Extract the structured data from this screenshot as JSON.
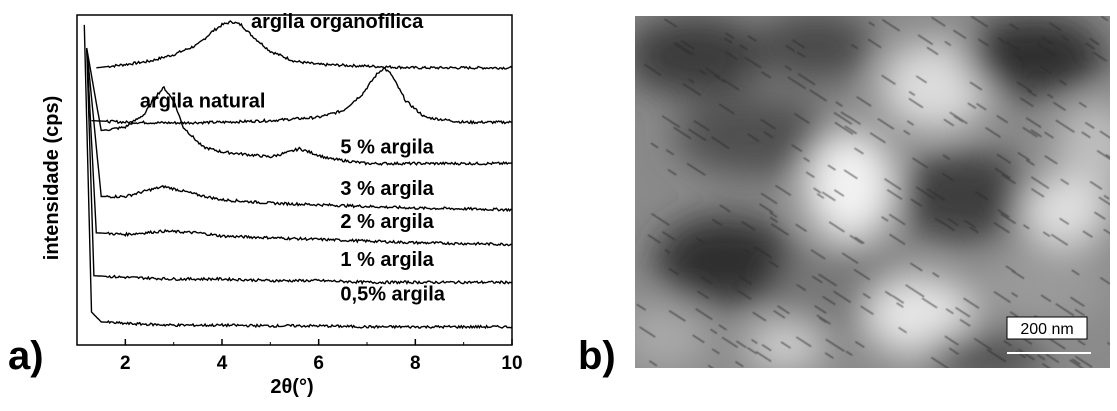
{
  "panel_a_label": "a)",
  "panel_b_label": "b)",
  "scale_bar_label": "200 nm",
  "chart_data": {
    "type": "line",
    "xlabel": "2θ(°)",
    "ylabel": "intensidade (cps)",
    "xlim": [
      1,
      10
    ],
    "xticks": [
      2,
      4,
      6,
      8,
      10
    ],
    "yticks_shown": false,
    "series": [
      {
        "name": "argila organofílica",
        "label_pos": [
          4.6,
          0.96
        ],
        "x": [
          1.4,
          2.0,
          2.5,
          3.0,
          3.5,
          3.8,
          4.0,
          4.2,
          4.4,
          4.6,
          5.0,
          5.5,
          6.0,
          7.0,
          8.0,
          9.0,
          10.0
        ],
        "y": [
          0.84,
          0.85,
          0.86,
          0.88,
          0.91,
          0.95,
          0.97,
          0.98,
          0.97,
          0.94,
          0.89,
          0.86,
          0.85,
          0.845,
          0.84,
          0.84,
          0.84
        ]
      },
      {
        "name": "argila natural",
        "label_pos": [
          2.3,
          0.72
        ],
        "x": [
          1.3,
          2.0,
          3.0,
          4.0,
          5.0,
          6.0,
          6.5,
          6.9,
          7.2,
          7.35,
          7.5,
          7.8,
          8.2,
          9.0,
          10.0
        ],
        "y": [
          0.68,
          0.675,
          0.673,
          0.675,
          0.68,
          0.69,
          0.71,
          0.76,
          0.82,
          0.84,
          0.82,
          0.74,
          0.69,
          0.675,
          0.675
        ]
      },
      {
        "name": "5 % argila",
        "label_pos": [
          6.45,
          0.58
        ],
        "x": [
          1.2,
          1.5,
          2.0,
          2.4,
          2.6,
          2.8,
          3.0,
          3.2,
          3.6,
          4.0,
          5.0,
          5.4,
          5.6,
          5.8,
          6.2,
          7.0,
          8.0,
          10.0
        ],
        "y": [
          0.9,
          0.65,
          0.66,
          0.7,
          0.75,
          0.78,
          0.74,
          0.66,
          0.6,
          0.585,
          0.57,
          0.585,
          0.595,
          0.585,
          0.565,
          0.55,
          0.55,
          0.55
        ]
      },
      {
        "name": "3 % argila",
        "label_pos": [
          6.45,
          0.455
        ],
        "x": [
          1.2,
          1.5,
          2.0,
          2.5,
          2.8,
          3.1,
          3.5,
          4.0,
          5.0,
          6.0,
          7.0,
          8.0,
          10.0
        ],
        "y": [
          0.9,
          0.45,
          0.45,
          0.47,
          0.48,
          0.47,
          0.455,
          0.44,
          0.43,
          0.425,
          0.42,
          0.415,
          0.41
        ]
      },
      {
        "name": "2 % argila",
        "label_pos": [
          6.45,
          0.355
        ],
        "x": [
          1.2,
          1.4,
          2.0,
          2.8,
          3.5,
          4.0,
          5.0,
          6.0,
          7.0,
          8.0,
          10.0
        ],
        "y": [
          0.9,
          0.34,
          0.335,
          0.345,
          0.34,
          0.33,
          0.325,
          0.32,
          0.315,
          0.31,
          0.305
        ]
      },
      {
        "name": "1 % argila",
        "label_pos": [
          6.45,
          0.24
        ],
        "x": [
          1.2,
          1.35,
          2.0,
          3.0,
          4.0,
          5.0,
          6.0,
          7.0,
          8.0,
          10.0
        ],
        "y": [
          0.9,
          0.21,
          0.205,
          0.2,
          0.2,
          0.195,
          0.195,
          0.19,
          0.19,
          0.19
        ]
      },
      {
        "name": "0,5% argila",
        "label_pos": [
          6.45,
          0.135
        ],
        "x": [
          1.15,
          1.3,
          1.5,
          2.0,
          3.0,
          4.0,
          5.0,
          6.0,
          7.0,
          8.0,
          10.0
        ],
        "y": [
          0.97,
          0.1,
          0.07,
          0.065,
          0.06,
          0.06,
          0.058,
          0.058,
          0.055,
          0.055,
          0.055
        ]
      }
    ]
  }
}
